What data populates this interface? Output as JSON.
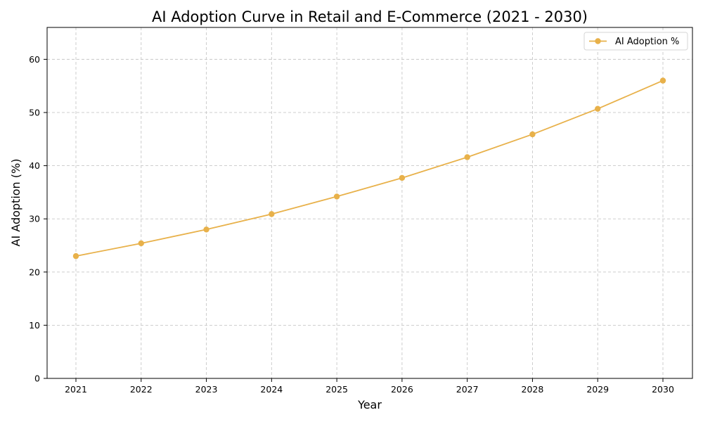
{
  "chart_data": {
    "type": "line",
    "title": "AI Adoption Curve in Retail and E-Commerce (2021 - 2030)",
    "xlabel": "Year",
    "ylabel": "AI Adoption (%)",
    "x": [
      "2021",
      "2022",
      "2023",
      "2024",
      "2025",
      "2026",
      "2027",
      "2028",
      "2029",
      "2030"
    ],
    "series": [
      {
        "name": "AI Adoption %",
        "values": [
          23.0,
          25.4,
          28.0,
          30.9,
          34.2,
          37.7,
          41.6,
          45.9,
          50.7,
          56.0
        ],
        "color": "#E8B14A"
      }
    ],
    "ylim": [
      0,
      66
    ],
    "yticks": [
      "0",
      "10",
      "20",
      "30",
      "40",
      "50",
      "60"
    ],
    "grid": true,
    "legend_position": "top-right"
  }
}
